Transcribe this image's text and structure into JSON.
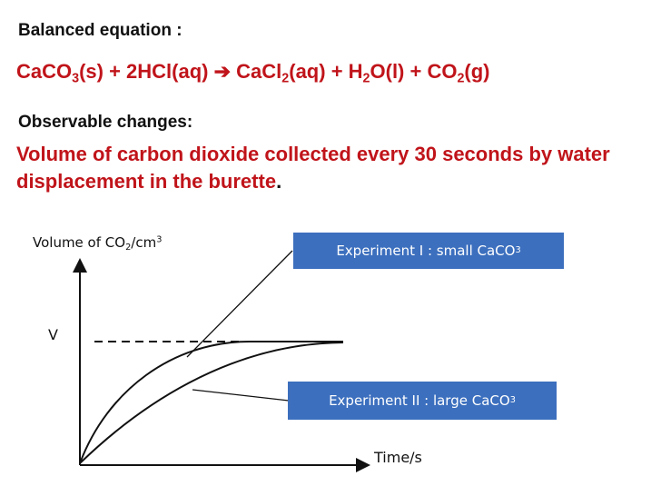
{
  "header": {
    "balanced_label": "Balanced equation :",
    "equation": {
      "caco3": "CaCO",
      "caco3_sub": "3",
      "caco3_state": "(s) + 2HCl(aq) ",
      "arrow": "➔",
      "cacl2": " CaCl",
      "cacl2_sub": "2",
      "cacl2_state": "(aq) + H",
      "h2o_sub": "2",
      "h2o_state": "O(l) + CO",
      "co2_sub": "2",
      "co2_state": "(g)"
    },
    "observable_label": "Observable changes:",
    "observable_text": "Volume of carbon dioxide collected every 30 seconds by water displacement in the burette",
    "observable_end": "."
  },
  "colors": {
    "accent_red": "#c0141a",
    "callout_blue": "#3c6fbe"
  },
  "callouts": {
    "exp1_text": "Experiment I : small CaCO",
    "exp1_sub": "3",
    "exp2_text": "Experiment II : large CaCO",
    "exp2_sub": "3"
  },
  "chart_data": {
    "type": "line",
    "ylabel": "Volume of CO",
    "ylabel_sub": "2",
    "ylabel_unit": "/cm",
    "ylabel_sup": "3",
    "xlabel": "Time/s",
    "v_label": "V",
    "reference_line": {
      "y": "V",
      "style": "dashed"
    },
    "series": [
      {
        "name": "Experiment I : small CaCO3",
        "shape": "rises quickly, levels off at V"
      },
      {
        "name": "Experiment II : large CaCO3",
        "shape": "rises slowly, reaches V later"
      }
    ]
  }
}
